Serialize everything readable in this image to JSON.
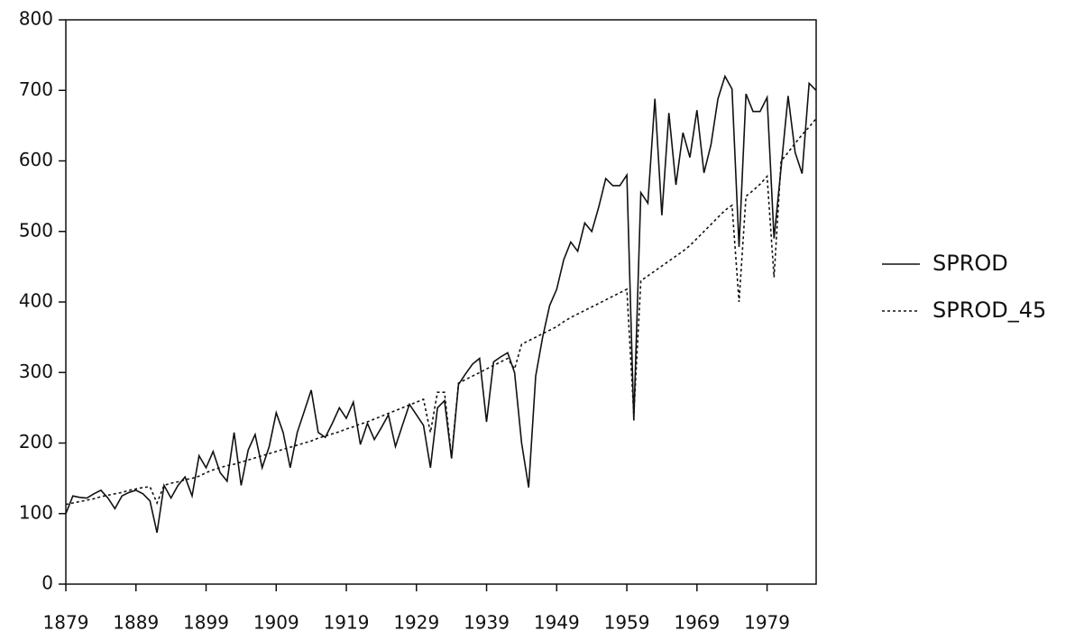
{
  "chart_data": {
    "type": "line",
    "x": [
      1879,
      1880,
      1881,
      1882,
      1883,
      1884,
      1885,
      1886,
      1887,
      1888,
      1889,
      1890,
      1891,
      1892,
      1893,
      1894,
      1895,
      1896,
      1897,
      1898,
      1899,
      1900,
      1901,
      1902,
      1903,
      1904,
      1905,
      1906,
      1907,
      1908,
      1909,
      1910,
      1911,
      1912,
      1913,
      1914,
      1915,
      1916,
      1917,
      1918,
      1919,
      1920,
      1921,
      1922,
      1923,
      1924,
      1925,
      1926,
      1927,
      1928,
      1929,
      1930,
      1931,
      1932,
      1933,
      1934,
      1935,
      1936,
      1937,
      1938,
      1939,
      1940,
      1941,
      1942,
      1943,
      1944,
      1945,
      1946,
      1947,
      1948,
      1949,
      1950,
      1951,
      1952,
      1953,
      1954,
      1955,
      1956,
      1957,
      1958,
      1959,
      1960,
      1961,
      1962,
      1963,
      1964,
      1965,
      1966,
      1967,
      1968,
      1969,
      1970,
      1971,
      1972,
      1973,
      1974,
      1975,
      1976,
      1977,
      1978,
      1979,
      1980,
      1981,
      1982,
      1983,
      1984,
      1985,
      1986
    ],
    "series": [
      {
        "name": "SPROD",
        "color": "#111111",
        "style": "solid",
        "values": [
          100,
          125,
          123,
          122,
          128,
          133,
          122,
          107,
          125,
          130,
          133,
          128,
          118,
          73,
          140,
          122,
          140,
          152,
          125,
          182,
          165,
          188,
          158,
          146,
          215,
          140,
          190,
          212,
          165,
          195,
          243,
          215,
          165,
          215,
          245,
          275,
          215,
          208,
          228,
          250,
          235,
          258,
          198,
          228,
          205,
          222,
          240,
          195,
          225,
          255,
          240,
          225,
          165,
          250,
          260,
          178,
          283,
          298,
          312,
          320,
          230,
          315,
          322,
          328,
          300,
          200,
          137,
          295,
          350,
          395,
          418,
          460,
          485,
          472,
          512,
          500,
          535,
          575,
          565,
          565,
          580,
          232,
          555,
          540,
          688,
          523,
          668,
          566,
          640,
          605,
          672,
          583,
          623,
          688,
          720,
          702,
          478,
          695,
          670,
          670,
          690,
          490,
          590,
          692,
          612,
          582,
          710,
          700
        ]
      },
      {
        "name": "SPROD_45",
        "color": "#111111",
        "style": "dotted",
        "values": [
          113,
          115,
          117,
          119,
          121,
          124,
          126,
          128,
          130,
          133,
          135,
          137,
          138,
          115,
          140,
          143,
          145,
          148,
          150,
          153,
          158,
          162,
          165,
          168,
          170,
          173,
          176,
          179,
          182,
          185,
          188,
          191,
          194,
          197,
          200,
          203,
          207,
          210,
          213,
          216,
          220,
          223,
          227,
          230,
          234,
          238,
          242,
          246,
          250,
          254,
          258,
          262,
          215,
          272,
          272,
          180,
          285,
          290,
          295,
          300,
          305,
          310,
          315,
          320,
          305,
          340,
          345,
          350,
          355,
          360,
          365,
          372,
          378,
          383,
          388,
          393,
          398,
          403,
          408,
          413,
          418,
          240,
          430,
          437,
          444,
          451,
          458,
          465,
          472,
          480,
          490,
          500,
          510,
          520,
          530,
          537,
          400,
          550,
          558,
          567,
          578,
          435,
          600,
          612,
          625,
          637,
          648,
          660
        ]
      }
    ],
    "xlim": [
      1879,
      1986
    ],
    "xticks": [
      1879,
      1889,
      1899,
      1909,
      1919,
      1929,
      1939,
      1949,
      1959,
      1969,
      1979
    ],
    "ylim": [
      0,
      800
    ],
    "yticks": [
      0,
      100,
      200,
      300,
      400,
      500,
      600,
      700,
      800
    ],
    "legend": "right"
  }
}
